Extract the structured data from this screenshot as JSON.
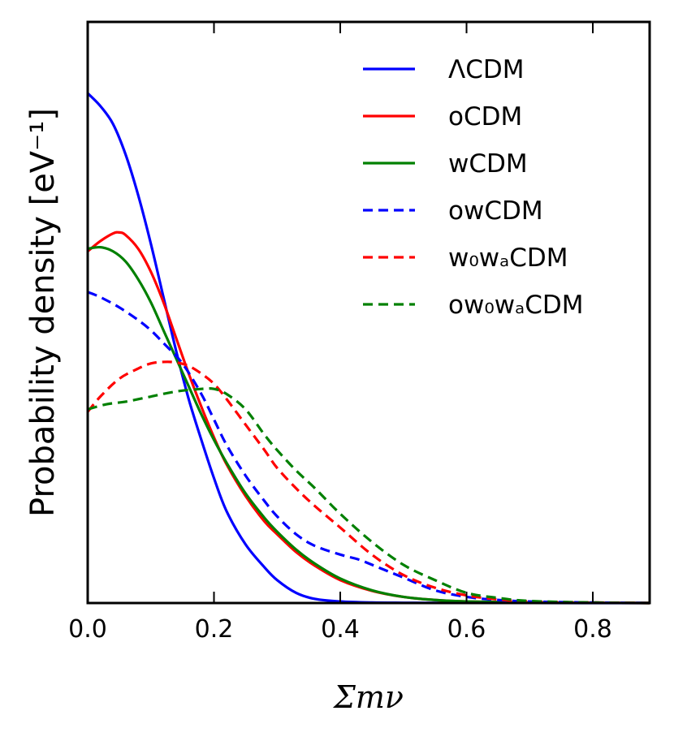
{
  "chart_data": {
    "type": "line",
    "title": "",
    "xlabel": "Σmν",
    "ylabel": "Probability density [eV⁻¹]",
    "xlim": [
      0.0,
      0.89
    ],
    "ylim": [
      0.0,
      1.14
    ],
    "xticks": [
      0.0,
      0.2,
      0.4,
      0.6,
      0.8
    ],
    "xtick_labels": [
      "0.0",
      "0.2",
      "0.4",
      "0.6",
      "0.8"
    ],
    "grid": false,
    "legend_position": "top-right",
    "series": [
      {
        "name": "ΛCDM",
        "color": "#0000ff",
        "dash": "solid",
        "x": [
          0,
          0.02,
          0.04,
          0.06,
          0.08,
          0.1,
          0.12,
          0.14,
          0.16,
          0.18,
          0.2,
          0.22,
          0.25,
          0.28,
          0.3,
          0.33,
          0.36,
          0.4,
          0.45,
          0.5,
          0.6,
          0.7,
          0.89
        ],
        "values": [
          1.0,
          0.975,
          0.94,
          0.88,
          0.8,
          0.705,
          0.6,
          0.495,
          0.4,
          0.32,
          0.245,
          0.18,
          0.115,
          0.07,
          0.045,
          0.02,
          0.008,
          0.003,
          0.001,
          0.0005,
          0.0002,
          0.0001,
          0.0
        ]
      },
      {
        "name": "oCDM",
        "color": "#ff0000",
        "dash": "solid",
        "x": [
          0,
          0.02,
          0.04,
          0.05,
          0.06,
          0.08,
          0.1,
          0.12,
          0.14,
          0.16,
          0.18,
          0.2,
          0.22,
          0.25,
          0.28,
          0.3,
          0.33,
          0.36,
          0.4,
          0.45,
          0.5,
          0.55,
          0.6,
          0.7,
          0.8,
          0.89
        ],
        "values": [
          0.69,
          0.71,
          0.725,
          0.727,
          0.722,
          0.695,
          0.65,
          0.59,
          0.52,
          0.45,
          0.385,
          0.325,
          0.272,
          0.21,
          0.16,
          0.135,
          0.1,
          0.073,
          0.045,
          0.024,
          0.012,
          0.006,
          0.003,
          0.0008,
          0.0002,
          0.0
        ]
      },
      {
        "name": "wCDM",
        "color": "#008000",
        "dash": "solid",
        "x": [
          0,
          0.02,
          0.04,
          0.06,
          0.08,
          0.1,
          0.12,
          0.14,
          0.16,
          0.18,
          0.2,
          0.22,
          0.25,
          0.28,
          0.3,
          0.33,
          0.36,
          0.4,
          0.45,
          0.5,
          0.55,
          0.6,
          0.7,
          0.8,
          0.89
        ],
        "values": [
          0.695,
          0.698,
          0.69,
          0.67,
          0.635,
          0.59,
          0.535,
          0.48,
          0.425,
          0.37,
          0.32,
          0.275,
          0.215,
          0.167,
          0.14,
          0.105,
          0.077,
          0.048,
          0.025,
          0.012,
          0.006,
          0.003,
          0.0008,
          0.0002,
          0.0
        ]
      },
      {
        "name": "owCDM",
        "color": "#0000ff",
        "dash": "dashed",
        "x": [
          0,
          0.02,
          0.05,
          0.08,
          0.1,
          0.12,
          0.15,
          0.18,
          0.2,
          0.22,
          0.25,
          0.28,
          0.3,
          0.33,
          0.36,
          0.4,
          0.43,
          0.46,
          0.5,
          0.55,
          0.6,
          0.65,
          0.7,
          0.8,
          0.89
        ],
        "values": [
          0.61,
          0.6,
          0.58,
          0.555,
          0.535,
          0.51,
          0.47,
          0.41,
          0.36,
          0.31,
          0.25,
          0.2,
          0.17,
          0.135,
          0.112,
          0.095,
          0.085,
          0.07,
          0.05,
          0.025,
          0.012,
          0.006,
          0.003,
          0.001,
          0.0
        ]
      },
      {
        "name": "w₀wₐCDM",
        "color": "#ff0000",
        "dash": "dashed",
        "x": [
          0,
          0.02,
          0.05,
          0.08,
          0.1,
          0.12,
          0.14,
          0.16,
          0.18,
          0.2,
          0.22,
          0.25,
          0.28,
          0.3,
          0.33,
          0.36,
          0.4,
          0.45,
          0.5,
          0.55,
          0.6,
          0.65,
          0.7,
          0.8,
          0.89
        ],
        "values": [
          0.375,
          0.405,
          0.44,
          0.46,
          0.47,
          0.473,
          0.472,
          0.465,
          0.45,
          0.43,
          0.4,
          0.35,
          0.3,
          0.265,
          0.225,
          0.19,
          0.148,
          0.095,
          0.055,
          0.03,
          0.015,
          0.007,
          0.003,
          0.001,
          0.0
        ]
      },
      {
        "name": "ow₀wₐCDM",
        "color": "#008000",
        "dash": "dashed",
        "x": [
          0,
          0.03,
          0.06,
          0.1,
          0.14,
          0.18,
          0.2,
          0.22,
          0.25,
          0.28,
          0.3,
          0.33,
          0.36,
          0.4,
          0.45,
          0.5,
          0.55,
          0.6,
          0.65,
          0.7,
          0.8,
          0.89
        ],
        "values": [
          0.38,
          0.39,
          0.395,
          0.405,
          0.415,
          0.42,
          0.42,
          0.41,
          0.38,
          0.33,
          0.3,
          0.26,
          0.225,
          0.175,
          0.12,
          0.075,
          0.045,
          0.02,
          0.01,
          0.004,
          0.001,
          0.0
        ]
      }
    ]
  }
}
